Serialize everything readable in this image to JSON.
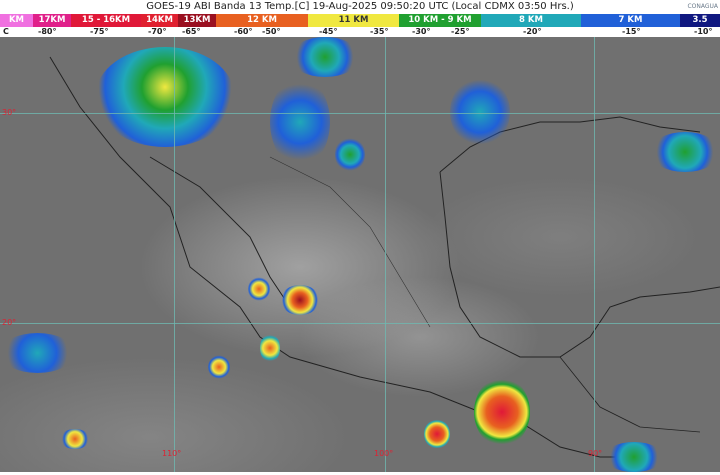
{
  "header": {
    "title": "GOES-19 ABI Banda 13 Temp.[C] 19-Aug-2025 09:50:20 UTC (Local CDMX  03:50 Hrs.)",
    "logo_text": "CONAGUA"
  },
  "scale": {
    "segments": [
      {
        "label": "KM",
        "color": "#f070e0"
      },
      {
        "label": "17KM",
        "color": "#e0208a"
      },
      {
        "label": "15 - 16KM",
        "color": "#e01838"
      },
      {
        "label": "14KM",
        "color": "#e02030"
      },
      {
        "label": "13KM",
        "color": "#9a1020"
      },
      {
        "label": "12 KM",
        "color": "#e86020"
      },
      {
        "label": "11 KM",
        "color": "#f0e840"
      },
      {
        "label": "10 KM -  9 KM",
        "color": "#20a030"
      },
      {
        "label": "8 KM",
        "color": "#20a8b8"
      },
      {
        "label": "7 KM",
        "color": "#2060d8"
      },
      {
        "label": "3.5",
        "color": "#101880"
      }
    ],
    "temps": [
      "C",
      "-80°",
      "-75°",
      "-70°",
      "-65°",
      "-60°",
      "-50°",
      "-45°",
      "-35°",
      "-30°",
      "-25°",
      "-20°",
      "-15°",
      "-10°"
    ]
  },
  "map": {
    "lat_labels": [
      "30°",
      "20°"
    ],
    "lon_labels": [
      "110°",
      "100°",
      "90°"
    ]
  }
}
